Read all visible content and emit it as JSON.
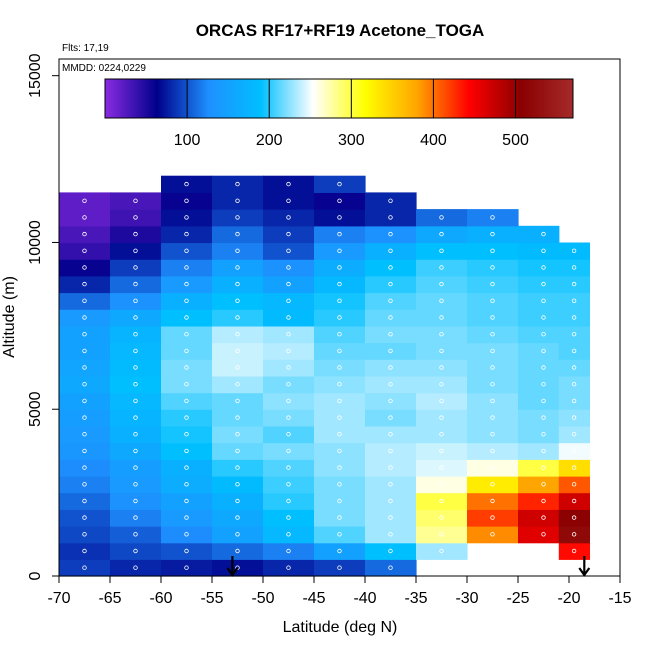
{
  "chart_data": {
    "type": "heatmap",
    "title": "ORCAS RF17+RF19 Acetone_TOGA",
    "notes": [
      "Flts: 17,19",
      "MMDD: 0224,0229"
    ],
    "xlabel": "Latitude (deg N)",
    "ylabel": "Altitude (m)",
    "xlim": [
      -70,
      -15
    ],
    "ylim": [
      0,
      15500
    ],
    "xticks": [
      -70,
      -65,
      -60,
      -55,
      -50,
      -45,
      -40,
      -35,
      -30,
      -25,
      -20,
      -15
    ],
    "yticks": [
      0,
      5000,
      10000,
      15000
    ],
    "colorbar": {
      "range": [
        0,
        570
      ],
      "ticks": [
        100,
        200,
        300,
        400,
        500
      ],
      "colors": [
        "#8a2be2",
        "#00008b",
        "#1e90ff",
        "#00bfff",
        "#ffffff",
        "#ffff00",
        "#ffa500",
        "#ff0000",
        "#8b0000",
        "#a52a2a"
      ],
      "placement": "top"
    },
    "grid": false,
    "arrows_at_latitude": [
      -53,
      -18.5
    ],
    "x": [
      -67.5,
      -62.5,
      -57.5,
      -52.5,
      -47.5,
      -42.5,
      -37.5,
      -32.5,
      -27.5,
      -22.5,
      -19.5
    ],
    "y": [
      250,
      750,
      1250,
      1750,
      2250,
      2750,
      3250,
      3750,
      4250,
      4750,
      5250,
      5750,
      6250,
      6750,
      7250,
      7750,
      8250,
      8750,
      9250,
      9750,
      10250,
      10750,
      11250,
      11750
    ],
    "z": [
      [
        90,
        80,
        75,
        70,
        80,
        90,
        110,
        null,
        null,
        null,
        null
      ],
      [
        85,
        95,
        100,
        110,
        120,
        150,
        190,
        230,
        null,
        null,
        440
      ],
      [
        95,
        105,
        125,
        150,
        180,
        210,
        230,
        280,
        390,
        460,
        520
      ],
      [
        100,
        120,
        140,
        160,
        190,
        220,
        230,
        290,
        420,
        470,
        510
      ],
      [
        110,
        130,
        150,
        170,
        200,
        220,
        230,
        300,
        400,
        430,
        470
      ],
      [
        120,
        140,
        165,
        185,
        205,
        220,
        230,
        260,
        330,
        380,
        410
      ],
      [
        125,
        145,
        170,
        200,
        210,
        225,
        235,
        245,
        260,
        300,
        340
      ],
      [
        135,
        160,
        190,
        215,
        220,
        225,
        235,
        240,
        235,
        230,
        250
      ],
      [
        140,
        170,
        195,
        220,
        210,
        230,
        230,
        230,
        225,
        220,
        230
      ],
      [
        145,
        175,
        200,
        215,
        220,
        230,
        220,
        230,
        225,
        220,
        225
      ],
      [
        150,
        180,
        210,
        215,
        225,
        230,
        225,
        235,
        225,
        215,
        220
      ],
      [
        160,
        190,
        220,
        230,
        220,
        225,
        230,
        230,
        220,
        215,
        220
      ],
      [
        155,
        185,
        220,
        240,
        230,
        220,
        225,
        225,
        220,
        215,
        215
      ],
      [
        150,
        180,
        215,
        240,
        235,
        215,
        215,
        220,
        220,
        215,
        210
      ],
      [
        150,
        175,
        215,
        235,
        230,
        210,
        220,
        220,
        215,
        210,
        210
      ],
      [
        140,
        160,
        190,
        200,
        185,
        200,
        215,
        215,
        210,
        205,
        205
      ],
      [
        110,
        130,
        170,
        190,
        180,
        195,
        210,
        215,
        210,
        205,
        205
      ],
      [
        80,
        110,
        140,
        170,
        150,
        180,
        200,
        210,
        205,
        200,
        200
      ],
      [
        60,
        90,
        120,
        150,
        130,
        165,
        190,
        205,
        200,
        195,
        195
      ],
      [
        40,
        70,
        100,
        120,
        100,
        140,
        170,
        190,
        190,
        185,
        185
      ],
      [
        30,
        50,
        80,
        110,
        90,
        120,
        130,
        160,
        170,
        170,
        null
      ],
      [
        20,
        35,
        70,
        90,
        80,
        70,
        80,
        110,
        120,
        null,
        null
      ],
      [
        20,
        30,
        60,
        80,
        70,
        60,
        80,
        null,
        null,
        null,
        null
      ],
      [
        null,
        null,
        70,
        80,
        70,
        90,
        null,
        null,
        null,
        null,
        null
      ]
    ]
  }
}
